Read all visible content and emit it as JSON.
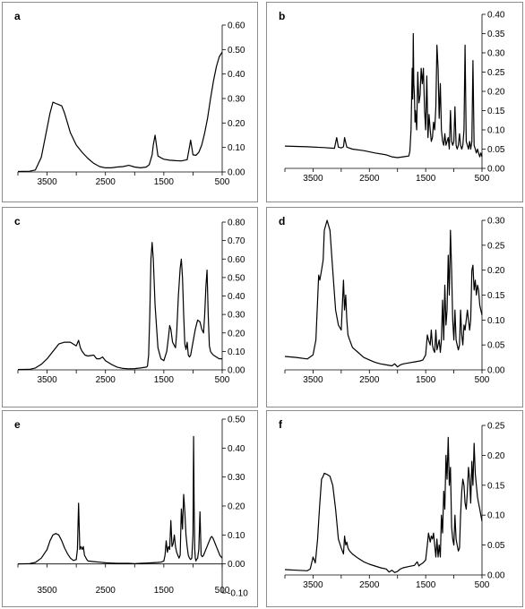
{
  "chart_data": [
    {
      "panel": "a",
      "type": "line",
      "xlim": [
        4000,
        500
      ],
      "ylim": [
        0,
        0.6
      ],
      "xticks": [
        3500,
        2500,
        1500,
        500
      ],
      "xticks_labeled": [
        "3500",
        "2500",
        "1500",
        "500"
      ],
      "yticks": [
        "0.00",
        "0.10",
        "0.20",
        "0.30",
        "0.40",
        "0.50",
        "0.60"
      ],
      "x": [
        4000,
        3800,
        3700,
        3600,
        3500,
        3450,
        3400,
        3350,
        3300,
        3250,
        3200,
        3100,
        3000,
        2900,
        2800,
        2700,
        2600,
        2500,
        2400,
        2300,
        2200,
        2100,
        2000,
        1900,
        1800,
        1750,
        1700,
        1680,
        1650,
        1620,
        1600,
        1550,
        1500,
        1400,
        1300,
        1200,
        1100,
        1070,
        1040,
        1020,
        1000,
        950,
        900,
        850,
        800,
        750,
        700,
        650,
        600,
        550,
        500
      ],
      "y": [
        0.002,
        0.003,
        0.008,
        0.06,
        0.18,
        0.24,
        0.285,
        0.28,
        0.275,
        0.27,
        0.24,
        0.16,
        0.11,
        0.08,
        0.055,
        0.035,
        0.022,
        0.017,
        0.017,
        0.02,
        0.022,
        0.027,
        0.02,
        0.017,
        0.02,
        0.03,
        0.07,
        0.11,
        0.15,
        0.1,
        0.065,
        0.058,
        0.052,
        0.048,
        0.046,
        0.045,
        0.05,
        0.09,
        0.13,
        0.1,
        0.07,
        0.068,
        0.08,
        0.11,
        0.16,
        0.22,
        0.3,
        0.37,
        0.43,
        0.47,
        0.49
      ]
    },
    {
      "panel": "b",
      "type": "line",
      "xlim": [
        4000,
        500
      ],
      "ylim": [
        0,
        0.4
      ],
      "xticks": [
        3500,
        2500,
        1500,
        500
      ],
      "xticks_labeled": [
        "3500",
        "2500",
        "1500",
        "500"
      ],
      "yticks": [
        "0.00",
        "0.05",
        "0.10",
        "0.15",
        "0.20",
        "0.25",
        "0.30",
        "0.35",
        "0.40"
      ],
      "x": [
        4000,
        3600,
        3300,
        3120,
        3080,
        3050,
        3000,
        2960,
        2940,
        2900,
        2800,
        2600,
        2400,
        2200,
        2100,
        2000,
        1900,
        1800,
        1780,
        1760,
        1740,
        1730,
        1720,
        1710,
        1700,
        1690,
        1680,
        1660,
        1640,
        1620,
        1600,
        1580,
        1560,
        1540,
        1520,
        1500,
        1480,
        1460,
        1440,
        1420,
        1400,
        1380,
        1360,
        1340,
        1320,
        1300,
        1280,
        1260,
        1240,
        1220,
        1200,
        1180,
        1160,
        1140,
        1120,
        1100,
        1080,
        1060,
        1040,
        1020,
        1000,
        980,
        960,
        940,
        920,
        900,
        880,
        860,
        840,
        820,
        800,
        780,
        760,
        740,
        720,
        700,
        680,
        660,
        640,
        620,
        600,
        580,
        560,
        540,
        520,
        500
      ],
      "y": [
        0.058,
        0.056,
        0.054,
        0.052,
        0.08,
        0.055,
        0.053,
        0.056,
        0.08,
        0.055,
        0.05,
        0.046,
        0.04,
        0.035,
        0.03,
        0.028,
        0.03,
        0.032,
        0.045,
        0.1,
        0.26,
        0.18,
        0.35,
        0.22,
        0.19,
        0.12,
        0.15,
        0.1,
        0.25,
        0.17,
        0.19,
        0.26,
        0.22,
        0.26,
        0.15,
        0.1,
        0.24,
        0.08,
        0.14,
        0.1,
        0.07,
        0.08,
        0.12,
        0.1,
        0.16,
        0.32,
        0.26,
        0.13,
        0.22,
        0.1,
        0.07,
        0.06,
        0.09,
        0.06,
        0.07,
        0.08,
        0.05,
        0.15,
        0.07,
        0.06,
        0.07,
        0.16,
        0.06,
        0.05,
        0.06,
        0.09,
        0.06,
        0.05,
        0.06,
        0.1,
        0.32,
        0.07,
        0.06,
        0.05,
        0.07,
        0.05,
        0.07,
        0.28,
        0.06,
        0.05,
        0.04,
        0.05,
        0.04,
        0.03,
        0.04,
        0.03
      ]
    },
    {
      "panel": "c",
      "type": "line",
      "xlim": [
        4000,
        500
      ],
      "ylim": [
        0,
        0.8
      ],
      "xticks": [
        3500,
        2500,
        1500,
        500
      ],
      "xticks_labeled": [
        "3500",
        "2500",
        "1500",
        "500"
      ],
      "yticks": [
        "0.00",
        "0.10",
        "0.20",
        "0.30",
        "0.40",
        "0.50",
        "0.60",
        "0.70",
        "0.80"
      ],
      "x": [
        4000,
        3800,
        3700,
        3600,
        3500,
        3400,
        3300,
        3200,
        3100,
        3000,
        2960,
        2930,
        2900,
        2850,
        2800,
        2700,
        2650,
        2600,
        2550,
        2500,
        2400,
        2300,
        2200,
        2100,
        2000,
        1900,
        1800,
        1780,
        1760,
        1740,
        1720,
        1700,
        1680,
        1650,
        1600,
        1550,
        1500,
        1450,
        1420,
        1400,
        1380,
        1350,
        1300,
        1280,
        1250,
        1220,
        1200,
        1180,
        1160,
        1140,
        1120,
        1100,
        1080,
        1060,
        1040,
        1000,
        960,
        920,
        880,
        850,
        820,
        800,
        780,
        760,
        740,
        720,
        700,
        680,
        650,
        600,
        550,
        500
      ],
      "y": [
        0.002,
        0.003,
        0.01,
        0.03,
        0.06,
        0.1,
        0.14,
        0.15,
        0.15,
        0.13,
        0.16,
        0.12,
        0.1,
        0.08,
        0.075,
        0.08,
        0.06,
        0.06,
        0.07,
        0.05,
        0.03,
        0.015,
        0.008,
        0.006,
        0.007,
        0.01,
        0.015,
        0.02,
        0.08,
        0.3,
        0.6,
        0.69,
        0.6,
        0.35,
        0.12,
        0.06,
        0.05,
        0.1,
        0.18,
        0.24,
        0.22,
        0.15,
        0.12,
        0.2,
        0.4,
        0.55,
        0.6,
        0.5,
        0.3,
        0.14,
        0.11,
        0.15,
        0.08,
        0.07,
        0.08,
        0.15,
        0.22,
        0.27,
        0.26,
        0.22,
        0.2,
        0.3,
        0.45,
        0.54,
        0.3,
        0.13,
        0.1,
        0.09,
        0.08,
        0.07,
        0.06,
        0.06
      ]
    },
    {
      "panel": "d",
      "type": "line",
      "xlim": [
        4000,
        500
      ],
      "ylim": [
        0,
        0.3
      ],
      "xticks": [
        3500,
        2500,
        1500,
        500
      ],
      "xticks_labeled": [
        "3500",
        "2500",
        "1500",
        "500"
      ],
      "yticks": [
        "0.00",
        "0.05",
        "0.10",
        "0.15",
        "0.20",
        "0.25",
        "0.30"
      ],
      "x": [
        4000,
        3800,
        3600,
        3500,
        3450,
        3400,
        3380,
        3350,
        3320,
        3300,
        3250,
        3200,
        3150,
        3100,
        3050,
        3000,
        2960,
        2940,
        2920,
        2900,
        2880,
        2850,
        2800,
        2700,
        2600,
        2500,
        2400,
        2300,
        2200,
        2100,
        2050,
        2000,
        1950,
        1900,
        1800,
        1700,
        1600,
        1550,
        1500,
        1470,
        1450,
        1420,
        1400,
        1380,
        1360,
        1340,
        1320,
        1300,
        1280,
        1260,
        1240,
        1220,
        1200,
        1180,
        1160,
        1140,
        1120,
        1100,
        1080,
        1060,
        1040,
        1020,
        1000,
        980,
        960,
        940,
        920,
        900,
        880,
        860,
        840,
        820,
        800,
        780,
        760,
        740,
        720,
        700,
        680,
        660,
        640,
        620,
        600,
        580,
        560,
        540,
        520,
        500
      ],
      "y": [
        0.027,
        0.025,
        0.022,
        0.03,
        0.06,
        0.19,
        0.18,
        0.2,
        0.22,
        0.28,
        0.3,
        0.28,
        0.2,
        0.12,
        0.09,
        0.08,
        0.18,
        0.12,
        0.15,
        0.1,
        0.07,
        0.06,
        0.045,
        0.035,
        0.025,
        0.02,
        0.015,
        0.012,
        0.01,
        0.008,
        0.012,
        0.006,
        0.01,
        0.012,
        0.014,
        0.016,
        0.018,
        0.02,
        0.03,
        0.07,
        0.06,
        0.05,
        0.08,
        0.05,
        0.04,
        0.035,
        0.08,
        0.04,
        0.05,
        0.06,
        0.035,
        0.06,
        0.14,
        0.06,
        0.17,
        0.09,
        0.12,
        0.23,
        0.15,
        0.28,
        0.2,
        0.1,
        0.06,
        0.12,
        0.06,
        0.05,
        0.04,
        0.05,
        0.12,
        0.07,
        0.05,
        0.09,
        0.08,
        0.1,
        0.12,
        0.1,
        0.08,
        0.1,
        0.2,
        0.21,
        0.16,
        0.18,
        0.15,
        0.17,
        0.16,
        0.13,
        0.12,
        0.11
      ]
    },
    {
      "panel": "e",
      "type": "line",
      "xlim": [
        4000,
        500
      ],
      "ylim": [
        -0.1,
        0.5
      ],
      "xticks": [
        3500,
        2500,
        1500,
        500
      ],
      "xticks_labeled": [
        "3500",
        "2500",
        "1500",
        "500"
      ],
      "yticks": [
        "-0.10",
        "0.00",
        "0.10",
        "0.20",
        "0.30",
        "0.40",
        "0.50"
      ],
      "x": [
        4000,
        3800,
        3700,
        3600,
        3500,
        3450,
        3400,
        3350,
        3300,
        3250,
        3200,
        3150,
        3100,
        3050,
        3000,
        2980,
        2960,
        2940,
        2920,
        2900,
        2880,
        2860,
        2820,
        2800,
        2700,
        2600,
        2500,
        2400,
        2300,
        2200,
        2100,
        2000,
        1900,
        1800,
        1700,
        1600,
        1550,
        1500,
        1480,
        1460,
        1440,
        1420,
        1400,
        1380,
        1360,
        1340,
        1320,
        1300,
        1280,
        1260,
        1240,
        1220,
        1200,
        1180,
        1160,
        1140,
        1120,
        1100,
        1080,
        1060,
        1040,
        1020,
        1000,
        990,
        980,
        970,
        960,
        950,
        940,
        920,
        900,
        880,
        860,
        840,
        820,
        800,
        780,
        760,
        740,
        720,
        700,
        680,
        660,
        640,
        620,
        600,
        580,
        560,
        540,
        520,
        500
      ],
      "y": [
        0.0,
        0.001,
        0.005,
        0.02,
        0.05,
        0.08,
        0.1,
        0.105,
        0.1,
        0.08,
        0.055,
        0.035,
        0.02,
        0.012,
        0.015,
        0.05,
        0.21,
        0.05,
        0.06,
        0.05,
        0.06,
        0.03,
        0.015,
        0.01,
        0.008,
        0.006,
        0.004,
        0.003,
        0.002,
        0.002,
        0.002,
        0.001,
        0.002,
        0.003,
        0.004,
        0.005,
        0.006,
        0.01,
        0.03,
        0.08,
        0.04,
        0.06,
        0.05,
        0.15,
        0.06,
        0.07,
        0.1,
        0.06,
        0.04,
        0.03,
        0.02,
        0.03,
        0.19,
        0.12,
        0.24,
        0.18,
        0.1,
        0.06,
        0.03,
        0.02,
        0.015,
        0.02,
        0.1,
        0.44,
        0.2,
        0.05,
        0.02,
        0.01,
        0.015,
        0.02,
        0.05,
        0.18,
        0.03,
        0.025,
        0.03,
        0.04,
        0.05,
        0.06,
        0.07,
        0.08,
        0.09,
        0.095,
        0.09,
        0.08,
        0.07,
        0.06,
        0.05,
        0.04,
        0.03,
        0.025,
        0.02
      ]
    },
    {
      "panel": "f",
      "type": "line",
      "xlim": [
        4000,
        500
      ],
      "ylim": [
        0,
        0.25
      ],
      "xticks": [
        3500,
        2500,
        1500,
        500
      ],
      "xticks_labeled": [
        "3500",
        "2500",
        "1500",
        "500"
      ],
      "yticks": [
        "0.00",
        "0.05",
        "0.10",
        "0.15",
        "0.20",
        "0.25"
      ],
      "x": [
        4000,
        3800,
        3600,
        3550,
        3500,
        3480,
        3460,
        3450,
        3420,
        3400,
        3380,
        3350,
        3320,
        3300,
        3250,
        3200,
        3150,
        3100,
        3050,
        3000,
        2960,
        2940,
        2920,
        2900,
        2880,
        2850,
        2800,
        2700,
        2600,
        2500,
        2400,
        2300,
        2200,
        2150,
        2100,
        2050,
        2000,
        1950,
        1900,
        1800,
        1700,
        1650,
        1620,
        1600,
        1550,
        1500,
        1470,
        1450,
        1420,
        1400,
        1380,
        1360,
        1340,
        1320,
        1300,
        1280,
        1260,
        1240,
        1220,
        1200,
        1180,
        1160,
        1140,
        1120,
        1100,
        1080,
        1060,
        1040,
        1020,
        1000,
        980,
        960,
        940,
        920,
        900,
        880,
        860,
        840,
        820,
        800,
        780,
        760,
        740,
        720,
        700,
        680,
        660,
        640,
        620,
        600,
        580,
        560,
        540,
        520,
        500
      ],
      "y": [
        0.009,
        0.008,
        0.007,
        0.01,
        0.03,
        0.025,
        0.02,
        0.03,
        0.06,
        0.09,
        0.12,
        0.16,
        0.165,
        0.17,
        0.168,
        0.165,
        0.15,
        0.11,
        0.06,
        0.045,
        0.035,
        0.065,
        0.05,
        0.055,
        0.045,
        0.04,
        0.035,
        0.028,
        0.022,
        0.018,
        0.015,
        0.012,
        0.01,
        0.005,
        0.008,
        0.004,
        0.006,
        0.01,
        0.012,
        0.014,
        0.016,
        0.022,
        0.015,
        0.017,
        0.02,
        0.025,
        0.05,
        0.07,
        0.055,
        0.065,
        0.06,
        0.07,
        0.05,
        0.03,
        0.06,
        0.03,
        0.05,
        0.03,
        0.1,
        0.07,
        0.14,
        0.11,
        0.2,
        0.16,
        0.23,
        0.15,
        0.18,
        0.08,
        0.06,
        0.05,
        0.1,
        0.06,
        0.05,
        0.04,
        0.045,
        0.1,
        0.14,
        0.16,
        0.15,
        0.12,
        0.11,
        0.14,
        0.18,
        0.16,
        0.12,
        0.19,
        0.15,
        0.22,
        0.17,
        0.15,
        0.13,
        0.12,
        0.11,
        0.1,
        0.09
      ]
    }
  ]
}
